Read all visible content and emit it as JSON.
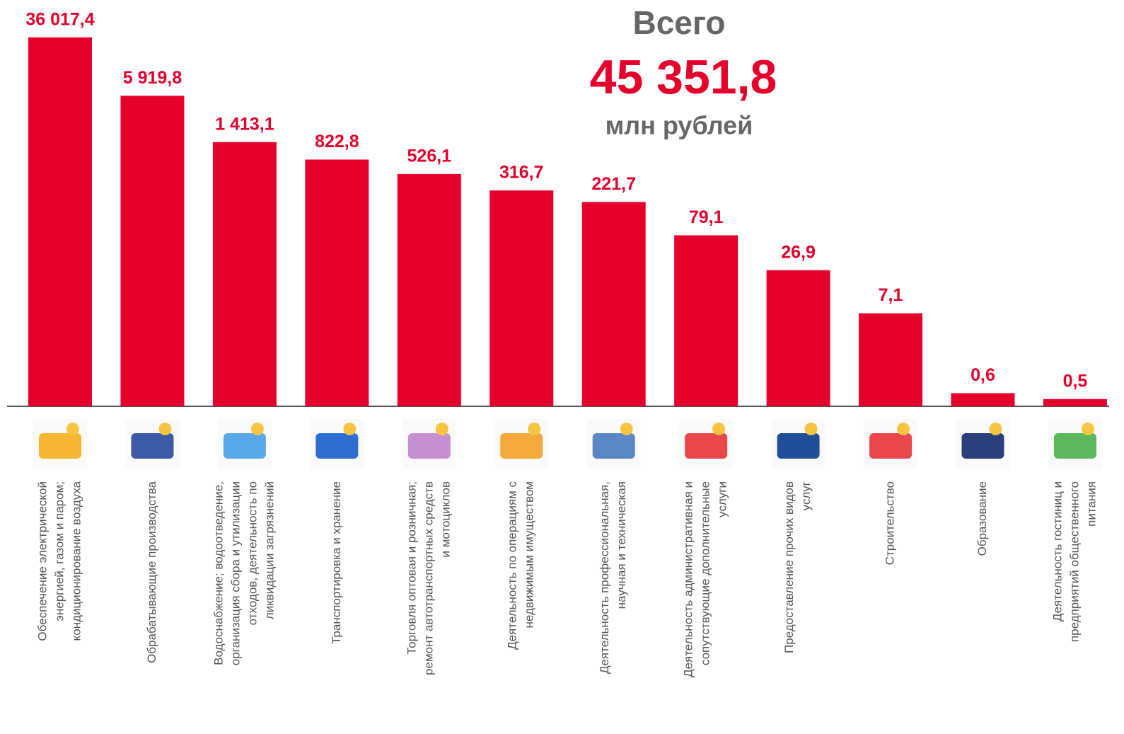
{
  "chart_data": {
    "type": "bar",
    "total_label": "Всего",
    "total_value": "45 351,8",
    "total_unit": "млн рублей",
    "color": "#e4002b",
    "log_scale": true,
    "ylim": [
      0.4,
      40000
    ],
    "categories": [
      [
        "Обеспечение электрической",
        "энергией, газом и паром;",
        "кондиционирование воздуха"
      ],
      [
        "Обрабатывающие производства"
      ],
      [
        "Водоснабжение; водоотведение,",
        "организация сбора и утилизации",
        "отходов, деятельность по",
        "ликвидации загрязнений"
      ],
      [
        "Транспортировка и хранение"
      ],
      [
        "Торговля оптовая и розничная;",
        "ремонт автотранспортных средств",
        "и мотоциклов"
      ],
      [
        "Деятельность по операциям с",
        "недвижимым имуществом"
      ],
      [
        "Деятельность профессиональная,",
        "научная и техническая"
      ],
      [
        "Деятельность административная и",
        "сопутствующие дополнительные",
        "услуги"
      ],
      [
        "Предоставление прочих видов",
        "услуг"
      ],
      [
        "Строительство"
      ],
      [
        "Образование"
      ],
      [
        "Деятельность гостиниц и",
        "предприятий общественного",
        "питания"
      ]
    ],
    "values": [
      36017.4,
      5919.8,
      1413.1,
      822.8,
      526.1,
      316.7,
      221.7,
      79.1,
      26.9,
      7.1,
      0.6,
      0.5
    ],
    "value_labels": [
      "36 017,4",
      "5 919,8",
      "1 413,1",
      "822,8",
      "526,1",
      "316,7",
      "221,7",
      "79,1",
      "26,9",
      "7,1",
      "0,6",
      "0,5"
    ]
  }
}
